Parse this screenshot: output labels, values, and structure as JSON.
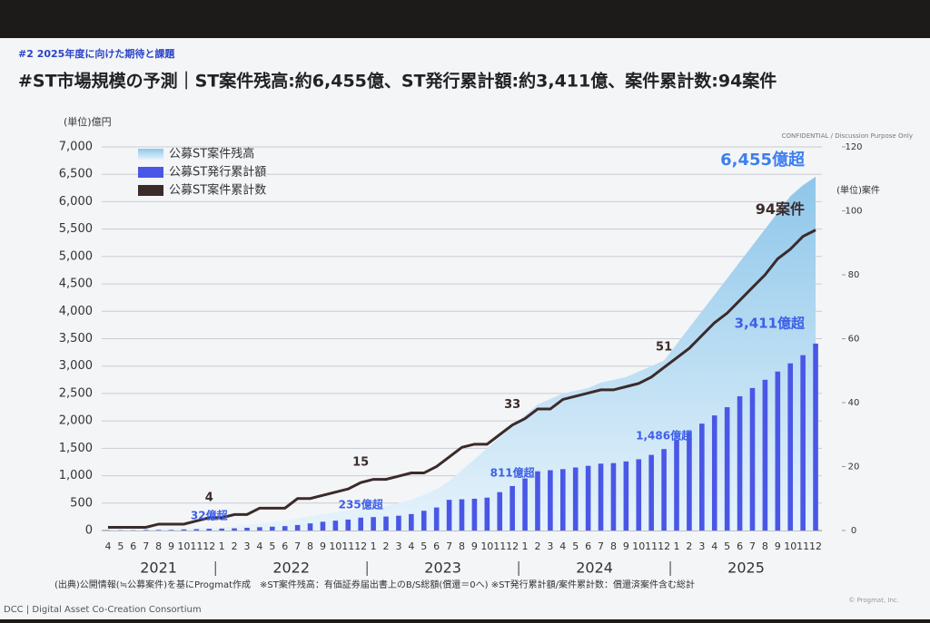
{
  "slide": {
    "section": "#2  2025年度に向けた期待と課題",
    "confidential": "CONFIDENTIAL / Discussion Purpose Only",
    "source": "(出典)公開情報(≒公募案件)を基にProgmat作成　※ST案件残高：有価証券届出書上のB/S総額(償還＝0へ) ※ST発行累計額/案件累計数：償還済案件含む総計",
    "org": "DCC | Digital Asset Co-Creation Consortium",
    "copyright": "© Progmat, Inc."
  },
  "chart_data": {
    "type": "combo",
    "title": "#ST市場規模の予測｜ST案件残高:約6,455億、ST発行累計額:約3,411億、案件累計数:94案件",
    "y_unit": "(単位)億円",
    "y2_unit": "(単位)案件",
    "legend": "top-left",
    "grid": true,
    "categories": [
      "4",
      "5",
      "6",
      "7",
      "8",
      "9",
      "10",
      "11",
      "12",
      "1",
      "2",
      "3",
      "4",
      "5",
      "6",
      "7",
      "8",
      "9",
      "10",
      "11",
      "12",
      "1",
      "2",
      "3",
      "4",
      "5",
      "6",
      "7",
      "8",
      "9",
      "10",
      "11",
      "12",
      "1",
      "2",
      "3",
      "4",
      "5",
      "6",
      "7",
      "8",
      "9",
      "10",
      "11",
      "12",
      "1",
      "2",
      "3",
      "4",
      "5",
      "6",
      "7",
      "8",
      "9",
      "10",
      "11",
      "12"
    ],
    "x_groups": [
      "2021",
      "2022",
      "2023",
      "2024",
      "2025"
    ],
    "ylim": [
      0,
      7000
    ],
    "yticks": [
      0,
      500,
      {
        "value": 1000,
        "label": "1,000"
      },
      {
        "value": 1500,
        "label": "1,500"
      },
      {
        "value": 2000,
        "label": "2,000"
      },
      {
        "value": 2500,
        "label": "2,500"
      },
      {
        "value": 3000,
        "label": "3,000"
      },
      {
        "value": 3500,
        "label": "3,500"
      },
      {
        "value": 4000,
        "label": "4,000"
      },
      {
        "value": 4500,
        "label": "4,500"
      },
      {
        "value": 5000,
        "label": "5,000"
      },
      {
        "value": 5500,
        "label": "5,500"
      },
      {
        "value": 6000,
        "label": "6,000"
      },
      {
        "value": 6500,
        "label": "6,500"
      },
      {
        "value": 7000,
        "label": "7,000"
      }
    ],
    "y2lim": [
      0,
      120
    ],
    "y2ticks": [
      0,
      20,
      40,
      60,
      80,
      100,
      120
    ],
    "series": [
      {
        "name": "公募ST案件残高",
        "type": "area",
        "color": "#a9d5f0",
        "values": [
          20,
          20,
          20,
          25,
          30,
          35,
          40,
          45,
          50,
          60,
          80,
          100,
          120,
          150,
          180,
          220,
          260,
          300,
          330,
          360,
          400,
          420,
          450,
          500,
          560,
          650,
          750,
          900,
          1100,
          1300,
          1500,
          1700,
          1900,
          2100,
          2300,
          2400,
          2500,
          2550,
          2600,
          2700,
          2750,
          2800,
          2900,
          3000,
          3100,
          3400,
          3700,
          4000,
          4300,
          4600,
          4900,
          5200,
          5500,
          5800,
          6100,
          6300,
          6455
        ],
        "value_labels": [
          null,
          null,
          null,
          null,
          null,
          null,
          null,
          null,
          null,
          null,
          null,
          null,
          null,
          null,
          null,
          null,
          null,
          null,
          null,
          null,
          null,
          null,
          null,
          null,
          null,
          null,
          null,
          null,
          null,
          null,
          null,
          null,
          null,
          null,
          null,
          null,
          null,
          null,
          null,
          null,
          null,
          null,
          null,
          null,
          null,
          null,
          null,
          null,
          null,
          null,
          null,
          null,
          null,
          null,
          null,
          null,
          "6,455億超"
        ]
      },
      {
        "name": "公募ST発行累計額",
        "type": "bar",
        "color": "#4a57e6",
        "values": [
          5,
          5,
          5,
          10,
          10,
          10,
          20,
          25,
          32,
          35,
          40,
          50,
          60,
          70,
          80,
          100,
          130,
          160,
          180,
          200,
          235,
          245,
          255,
          270,
          300,
          360,
          420,
          560,
          570,
          580,
          600,
          700,
          811,
          950,
          1080,
          1100,
          1120,
          1150,
          1180,
          1220,
          1230,
          1260,
          1300,
          1380,
          1486,
          1650,
          1800,
          1950,
          2100,
          2250,
          2450,
          2600,
          2750,
          2900,
          3050,
          3200,
          3411
        ],
        "value_labels": [
          null,
          null,
          null,
          null,
          null,
          null,
          null,
          null,
          "32億超",
          null,
          null,
          null,
          null,
          null,
          null,
          null,
          null,
          null,
          null,
          null,
          "235億超",
          null,
          null,
          null,
          null,
          null,
          null,
          null,
          null,
          null,
          null,
          null,
          "811億超",
          null,
          null,
          null,
          null,
          null,
          null,
          null,
          null,
          null,
          null,
          null,
          "1,486億超",
          null,
          null,
          null,
          null,
          null,
          null,
          null,
          null,
          null,
          null,
          null,
          "3,411億超"
        ]
      },
      {
        "name": "公募ST案件累計数",
        "type": "line",
        "axis": "y2",
        "color": "#3b2b2b",
        "values": [
          1,
          1,
          1,
          1,
          2,
          2,
          2,
          3,
          4,
          4,
          5,
          5,
          7,
          7,
          7,
          10,
          10,
          11,
          12,
          13,
          15,
          16,
          16,
          17,
          18,
          18,
          20,
          23,
          26,
          27,
          27,
          30,
          33,
          35,
          38,
          38,
          41,
          42,
          43,
          44,
          44,
          45,
          46,
          48,
          51,
          54,
          57,
          61,
          65,
          68,
          72,
          76,
          80,
          85,
          88,
          92,
          94
        ],
        "value_labels": [
          null,
          null,
          null,
          null,
          null,
          null,
          null,
          null,
          "4",
          null,
          null,
          null,
          null,
          null,
          null,
          null,
          null,
          null,
          null,
          null,
          "15",
          null,
          null,
          null,
          null,
          null,
          null,
          null,
          null,
          null,
          null,
          null,
          "33",
          null,
          null,
          null,
          null,
          null,
          null,
          null,
          null,
          null,
          null,
          null,
          "51",
          null,
          null,
          null,
          null,
          null,
          null,
          null,
          null,
          null,
          null,
          null,
          "94案件"
        ]
      }
    ]
  }
}
